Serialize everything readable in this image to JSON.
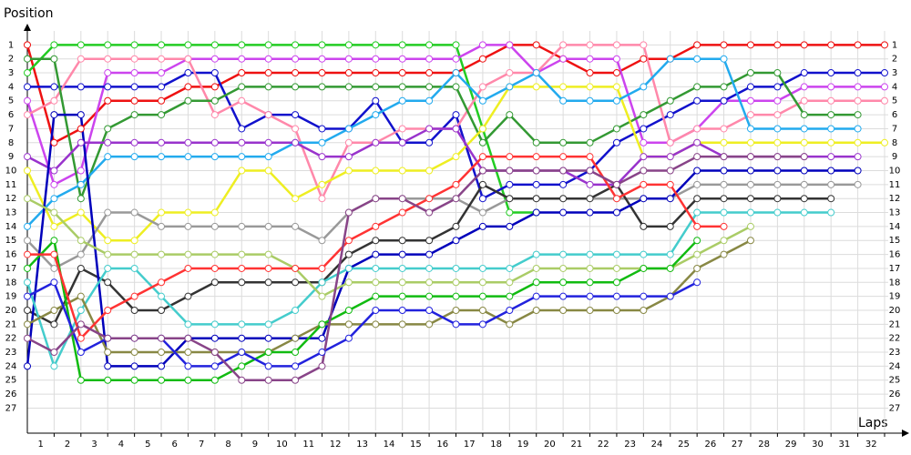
{
  "chart_data": {
    "type": "line",
    "y_title": "Position",
    "x_title": "Laps",
    "xlim": [
      0,
      32.85
    ],
    "ylim": [
      0,
      28.6
    ],
    "invert_y": true,
    "grid": true,
    "marker_fill": "#ffffff",
    "xticks": [
      1,
      2,
      3,
      4,
      5,
      6,
      7,
      8,
      9,
      10,
      11,
      12,
      13,
      14,
      15,
      16,
      17,
      18,
      19,
      20,
      21,
      22,
      23,
      24,
      25,
      26,
      27,
      28,
      29,
      30,
      31,
      32
    ],
    "yticks": [
      1,
      2,
      3,
      4,
      5,
      6,
      7,
      8,
      9,
      10,
      11,
      12,
      13,
      14,
      15,
      16,
      17,
      18,
      19,
      20,
      21,
      22,
      23,
      24,
      25,
      26,
      27
    ],
    "x": [
      0,
      1,
      2,
      3,
      4,
      5,
      6,
      7,
      8,
      9,
      10,
      11,
      12,
      13,
      14,
      15,
      16,
      17,
      18,
      19,
      20,
      21,
      22,
      23,
      24,
      25,
      26,
      27,
      28,
      29,
      30,
      31,
      32
    ],
    "series": [
      {
        "color": "#ee1111",
        "values": [
          1,
          8,
          7,
          5,
          5,
          5,
          4,
          4,
          3,
          3,
          3,
          3,
          3,
          3,
          3,
          3,
          3,
          2,
          1,
          1,
          2,
          3,
          3,
          2,
          2,
          1,
          1,
          1,
          1,
          1,
          1,
          1,
          1
        ]
      },
      {
        "color": "#22cc22",
        "values": [
          3,
          1,
          1,
          1,
          1,
          1,
          1,
          1,
          1,
          1,
          1,
          1,
          1,
          1,
          1,
          1,
          1,
          7,
          13,
          13,
          null,
          null,
          null,
          null,
          null,
          null,
          null,
          null,
          null,
          null,
          null,
          null,
          null
        ]
      },
      {
        "color": "#cc44ee",
        "values": [
          5,
          11,
          10,
          3,
          3,
          3,
          2,
          2,
          2,
          2,
          2,
          2,
          2,
          2,
          2,
          2,
          2,
          1,
          1,
          3,
          2,
          2,
          2,
          8,
          8,
          7,
          5,
          5,
          5,
          4,
          4,
          4,
          4
        ]
      },
      {
        "color": "#1111cc",
        "values": [
          4,
          4,
          4,
          4,
          4,
          4,
          3,
          3,
          7,
          6,
          6,
          7,
          7,
          5,
          8,
          8,
          6,
          12,
          11,
          11,
          11,
          10,
          8,
          7,
          6,
          5,
          5,
          4,
          4,
          3,
          3,
          3,
          3
        ]
      },
      {
        "color": "#ff88aa",
        "values": [
          6,
          5,
          2,
          2,
          2,
          2,
          2,
          6,
          5,
          6,
          7,
          12,
          8,
          8,
          7,
          7,
          7,
          4,
          3,
          3,
          1,
          1,
          1,
          1,
          8,
          7,
          7,
          6,
          6,
          5,
          5,
          5,
          5
        ]
      },
      {
        "color": "#339933",
        "values": [
          2,
          2,
          12,
          7,
          6,
          6,
          5,
          5,
          4,
          4,
          4,
          4,
          4,
          4,
          4,
          4,
          4,
          8,
          6,
          8,
          8,
          8,
          7,
          6,
          5,
          4,
          4,
          3,
          3,
          6,
          6,
          6,
          null
        ]
      },
      {
        "color": "#eeee22",
        "values": [
          10,
          14,
          13,
          15,
          15,
          13,
          13,
          13,
          10,
          10,
          12,
          11,
          10,
          10,
          10,
          10,
          9,
          7,
          4,
          4,
          4,
          4,
          4,
          9,
          9,
          8,
          8,
          8,
          8,
          8,
          8,
          8,
          8
        ]
      },
      {
        "color": "#22aaee",
        "values": [
          14,
          12,
          11,
          9,
          9,
          9,
          9,
          9,
          9,
          9,
          8,
          8,
          7,
          6,
          5,
          5,
          3,
          5,
          4,
          3,
          5,
          5,
          5,
          4,
          2,
          2,
          2,
          7,
          7,
          7,
          7,
          7,
          null
        ]
      },
      {
        "color": "#999999",
        "values": [
          15,
          17,
          16,
          13,
          13,
          14,
          14,
          14,
          14,
          14,
          14,
          15,
          13,
          12,
          12,
          12,
          12,
          13,
          12,
          12,
          12,
          12,
          12,
          12,
          12,
          11,
          11,
          11,
          11,
          11,
          11,
          11,
          null
        ]
      },
      {
        "color": "#333333",
        "values": [
          20,
          21,
          17,
          18,
          20,
          20,
          19,
          18,
          18,
          18,
          18,
          18,
          16,
          15,
          15,
          15,
          14,
          11,
          12,
          12,
          12,
          12,
          11,
          14,
          14,
          12,
          12,
          12,
          12,
          12,
          12,
          null,
          null
        ]
      },
      {
        "color": "#9933cc",
        "values": [
          9,
          10,
          8,
          8,
          8,
          8,
          8,
          8,
          8,
          8,
          8,
          9,
          9,
          8,
          8,
          7,
          7,
          10,
          10,
          10,
          10,
          11,
          11,
          9,
          9,
          8,
          9,
          9,
          9,
          9,
          9,
          9,
          null
        ]
      },
      {
        "color": "#0000bb",
        "values": [
          24,
          6,
          6,
          24,
          24,
          24,
          22,
          22,
          22,
          22,
          22,
          22,
          17,
          16,
          16,
          16,
          15,
          14,
          14,
          13,
          13,
          13,
          13,
          12,
          12,
          10,
          10,
          10,
          10,
          10,
          10,
          10,
          null
        ]
      },
      {
        "color": "#44cccc",
        "values": [
          18,
          24,
          20,
          17,
          17,
          19,
          21,
          21,
          21,
          21,
          20,
          18,
          17,
          17,
          17,
          17,
          17,
          17,
          17,
          16,
          16,
          16,
          16,
          16,
          16,
          13,
          13,
          13,
          13,
          13,
          13,
          null,
          null
        ]
      },
      {
        "color": "#888844",
        "values": [
          21,
          20,
          19,
          23,
          23,
          23,
          23,
          23,
          23,
          23,
          22,
          21,
          21,
          21,
          21,
          21,
          20,
          20,
          21,
          20,
          20,
          20,
          20,
          20,
          19,
          17,
          16,
          15,
          null,
          null,
          null,
          null,
          null
        ]
      },
      {
        "color": "#aacc66",
        "values": [
          12,
          13,
          15,
          16,
          16,
          16,
          16,
          16,
          16,
          16,
          17,
          19,
          18,
          18,
          18,
          18,
          18,
          18,
          18,
          17,
          17,
          17,
          17,
          17,
          17,
          16,
          15,
          14,
          null,
          null,
          null,
          null,
          null
        ]
      },
      {
        "color": "#11bb11",
        "values": [
          17,
          15,
          25,
          25,
          25,
          25,
          25,
          25,
          24,
          23,
          23,
          21,
          20,
          19,
          19,
          19,
          19,
          19,
          19,
          18,
          18,
          18,
          18,
          17,
          17,
          15,
          null,
          null,
          null,
          null,
          null,
          null,
          null
        ]
      },
      {
        "color": "#2222dd",
        "values": [
          19,
          18,
          23,
          22,
          22,
          22,
          24,
          24,
          23,
          24,
          24,
          23,
          22,
          20,
          20,
          20,
          21,
          21,
          20,
          19,
          19,
          19,
          19,
          19,
          19,
          18,
          null,
          null,
          null,
          null,
          null,
          null,
          null
        ]
      },
      {
        "color": "#ff3333",
        "values": [
          16,
          16,
          22,
          20,
          19,
          18,
          17,
          17,
          17,
          17,
          17,
          17,
          15,
          14,
          13,
          12,
          11,
          9,
          9,
          9,
          9,
          9,
          12,
          11,
          11,
          14,
          14,
          null,
          null,
          null,
          null,
          null,
          null
        ]
      },
      {
        "color": "#884488",
        "values": [
          22,
          23,
          21,
          22,
          22,
          22,
          22,
          23,
          25,
          25,
          25,
          24,
          13,
          12,
          12,
          13,
          12,
          10,
          10,
          10,
          10,
          10,
          11,
          10,
          10,
          9,
          9,
          9,
          9,
          9,
          null,
          null,
          null
        ]
      }
    ]
  }
}
